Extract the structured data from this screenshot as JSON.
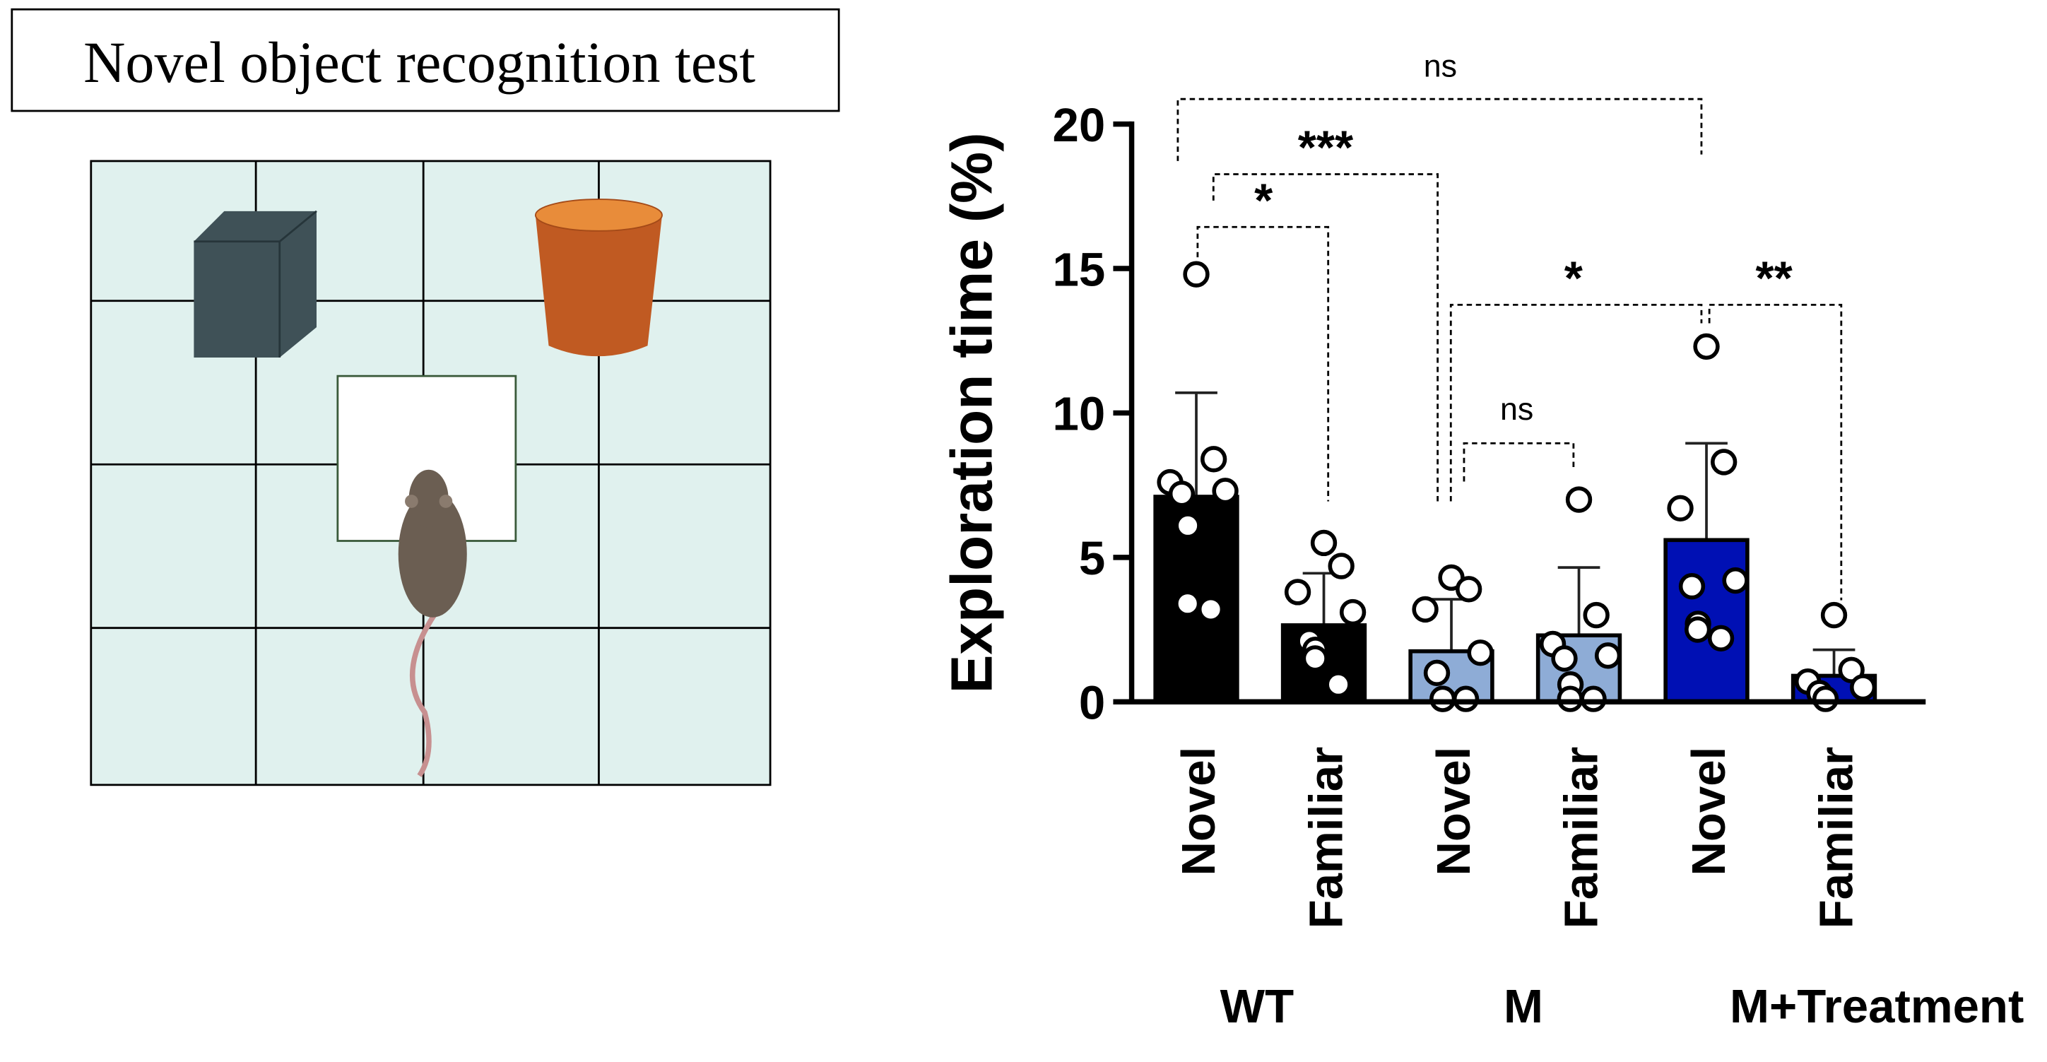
{
  "chart_data": {
    "type": "bar",
    "title": "Novel object recognition test",
    "y_label": "Exploration time (%)",
    "categories": [
      "Novel",
      "Familiar",
      "Novel",
      "Familiar",
      "Novel",
      "Familiar"
    ],
    "groups": [
      "WT",
      "M",
      "M+Treatment"
    ],
    "values": [
      7.1,
      2.65,
      1.75,
      2.3,
      5.6,
      0.9
    ],
    "errors": [
      3.6,
      1.8,
      1.8,
      2.35,
      3.35,
      0.9
    ],
    "colors": [
      "#000000",
      "#000000",
      "#8eacd6",
      "#8eacd6",
      "#0010b4",
      "#0010b4"
    ],
    "points": [
      [
        14.8,
        8.4,
        7.6,
        7.3,
        7.2,
        6.1,
        3.4,
        3.2
      ],
      [
        5.5,
        4.7,
        3.8,
        3.1,
        2.1,
        1.8,
        1.5,
        0.6
      ],
      [
        4.3,
        3.9,
        3.2,
        1.7,
        1.0,
        0.1,
        0.1,
        0.1
      ],
      [
        7.0,
        3.0,
        2.0,
        1.6,
        1.5,
        0.6,
        0.1,
        0.1
      ],
      [
        12.3,
        8.3,
        6.7,
        4.2,
        4.0,
        2.7,
        2.5,
        2.2
      ],
      [
        3.0,
        1.1,
        0.7,
        0.5,
        0.3,
        0.1
      ]
    ],
    "ylim": [
      0,
      20
    ],
    "yticks": [
      0,
      5,
      10,
      15,
      20
    ],
    "annotations": [
      {
        "label": "ns"
      },
      {
        "label": "***"
      },
      {
        "label": "*"
      },
      {
        "label": "*"
      },
      {
        "label": "**"
      },
      {
        "label": "ns"
      }
    ]
  }
}
